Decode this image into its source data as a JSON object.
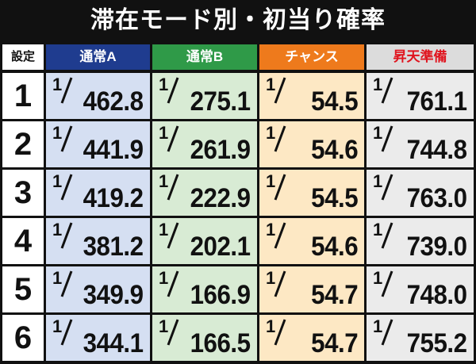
{
  "title": "滞在モード別・初当り確率",
  "table": {
    "corner": "設定",
    "headers": [
      "通常A",
      "通常B",
      "チャンス",
      "昇天準備"
    ],
    "rows": [
      {
        "setting": "1",
        "cells": [
          {
            "num": "1",
            "den": "462.8"
          },
          {
            "num": "1",
            "den": "275.1"
          },
          {
            "num": "1",
            "den": "54.5"
          },
          {
            "num": "1",
            "den": "761.1"
          }
        ]
      },
      {
        "setting": "2",
        "cells": [
          {
            "num": "1",
            "den": "441.9"
          },
          {
            "num": "1",
            "den": "261.9"
          },
          {
            "num": "1",
            "den": "54.6"
          },
          {
            "num": "1",
            "den": "744.8"
          }
        ]
      },
      {
        "setting": "3",
        "cells": [
          {
            "num": "1",
            "den": "419.2"
          },
          {
            "num": "1",
            "den": "222.9"
          },
          {
            "num": "1",
            "den": "54.5"
          },
          {
            "num": "1",
            "den": "763.0"
          }
        ]
      },
      {
        "setting": "4",
        "cells": [
          {
            "num": "1",
            "den": "381.2"
          },
          {
            "num": "1",
            "den": "202.1"
          },
          {
            "num": "1",
            "den": "54.6"
          },
          {
            "num": "1",
            "den": "739.0"
          }
        ]
      },
      {
        "setting": "5",
        "cells": [
          {
            "num": "1",
            "den": "349.9"
          },
          {
            "num": "1",
            "den": "166.9"
          },
          {
            "num": "1",
            "den": "54.7"
          },
          {
            "num": "1",
            "den": "748.0"
          }
        ]
      },
      {
        "setting": "6",
        "cells": [
          {
            "num": "1",
            "den": "344.1"
          },
          {
            "num": "1",
            "den": "166.5"
          },
          {
            "num": "1",
            "den": "54.7"
          },
          {
            "num": "1",
            "den": "755.2"
          }
        ]
      }
    ]
  }
}
